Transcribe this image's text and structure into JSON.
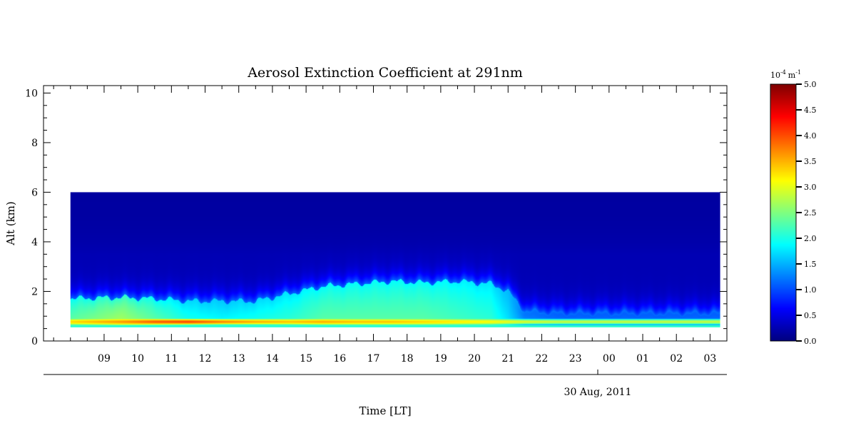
{
  "chart_data": {
    "type": "heatmap",
    "title": "Aerosol Extinction Coefficient at 291nm",
    "xlabel": "Time [LT]",
    "ylabel": "Alt (km)",
    "date_label": "30 Aug, 2011",
    "x_tick_labels": [
      "09",
      "10",
      "11",
      "12",
      "13",
      "14",
      "15",
      "16",
      "17",
      "18",
      "19",
      "20",
      "21",
      "22",
      "23",
      "00",
      "01",
      "02",
      "03"
    ],
    "y_ticks": [
      0,
      2,
      4,
      6,
      8,
      10
    ],
    "ylim": [
      0,
      10.3
    ],
    "data_altitude_range_km": [
      0.55,
      6.0
    ],
    "colorbar": {
      "unit_base": "10",
      "unit_exp": "-4",
      "unit_m": "m",
      "unit_m_exp": "-1",
      "range": [
        0.0,
        5.0
      ],
      "ticks": [
        "0.0",
        "0.5",
        "1.0",
        "1.5",
        "2.0",
        "2.5",
        "3.0",
        "3.5",
        "4.0",
        "4.5",
        "5.0"
      ],
      "colormap": "jet"
    },
    "profile": {
      "time_points": [
        8.0,
        9.5,
        10.5,
        11.5,
        12.5,
        13.5,
        14.5,
        15.5,
        16.5,
        17.5,
        18.5,
        19.5,
        20.5,
        21.0,
        21.5,
        22.5,
        23.5,
        24.5,
        25.5,
        26.5,
        27.3
      ],
      "layer_top_km": [
        1.7,
        1.75,
        1.7,
        1.6,
        1.6,
        1.6,
        1.9,
        2.2,
        2.3,
        2.4,
        2.35,
        2.4,
        2.3,
        2.0,
        1.2,
        1.1,
        1.1,
        1.1,
        1.1,
        1.1,
        1.1
      ],
      "peak_value": [
        3.3,
        3.6,
        3.9,
        4.0,
        3.7,
        3.5,
        3.4,
        3.5,
        3.4,
        3.4,
        3.3,
        3.2,
        3.1,
        3.0,
        2.9,
        2.8,
        2.8,
        2.8,
        2.8,
        2.8,
        2.8
      ],
      "layer_value": [
        2.0,
        2.3,
        2.0,
        1.7,
        1.6,
        1.7,
        1.8,
        2.0,
        2.0,
        2.0,
        2.0,
        1.9,
        1.8,
        1.5,
        1.1,
        1.0,
        1.0,
        1.0,
        1.0,
        1.0,
        1.0
      ]
    }
  }
}
